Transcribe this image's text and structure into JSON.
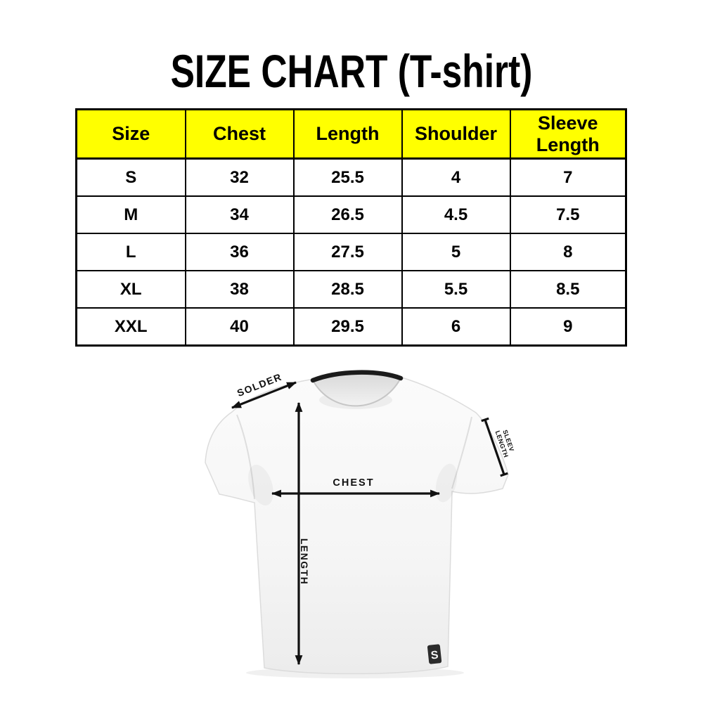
{
  "title": "SIZE CHART (T-shirt)",
  "table": {
    "headers": [
      "Size",
      "Chest",
      "Length",
      "Shoulder",
      "Sleeve Length"
    ],
    "rows": [
      [
        "S",
        "32",
        "25.5",
        "4",
        "7"
      ],
      [
        "M",
        "34",
        "26.5",
        "4.5",
        "7.5"
      ],
      [
        "L",
        "36",
        "27.5",
        "5",
        "8"
      ],
      [
        "XL",
        "38",
        "28.5",
        "5.5",
        "8.5"
      ],
      [
        "XXL",
        "40",
        "29.5",
        "6",
        "9"
      ]
    ]
  },
  "chart_data": {
    "type": "table",
    "title": "SIZE CHART (T-shirt)",
    "columns": [
      "Size",
      "Chest",
      "Length",
      "Shoulder",
      "Sleeve Length"
    ],
    "rows": [
      [
        "S",
        32,
        25.5,
        4,
        7
      ],
      [
        "M",
        34,
        26.5,
        4.5,
        7.5
      ],
      [
        "L",
        36,
        27.5,
        5,
        8
      ],
      [
        "XL",
        38,
        28.5,
        5.5,
        8.5
      ],
      [
        "XXL",
        40,
        29.5,
        6,
        9
      ]
    ]
  },
  "diagram": {
    "labels": {
      "shoulder": "SOLDER",
      "sleeve_line1": "SLEEV",
      "sleeve_line2": "LENGTH",
      "chest": "CHEST",
      "length": "LENGTH"
    },
    "logo_letter": "S"
  },
  "colors": {
    "table_header_bg": "#ffff00",
    "table_border": "#000000",
    "title_text": "#000000",
    "annotation": "#111111",
    "shirt_base": "#f7f7f7"
  }
}
